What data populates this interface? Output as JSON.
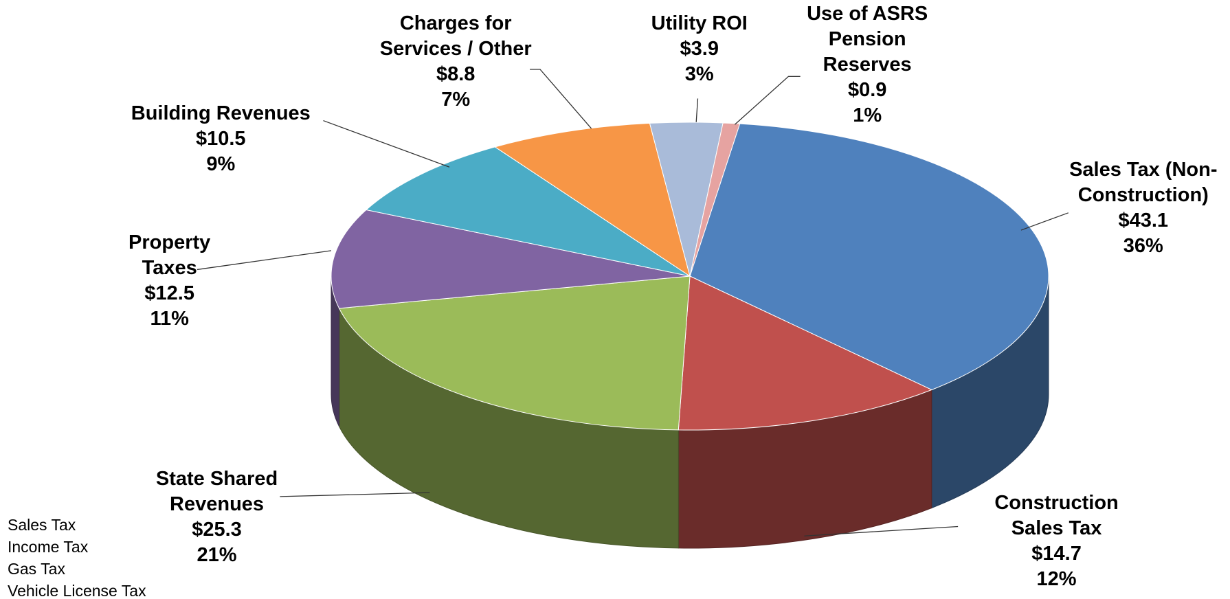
{
  "chart_data": {
    "type": "pie3d",
    "categories": [
      "Sales Tax (Non-\nConstruction)",
      "Construction\nSales Tax",
      "State Shared\nRevenues",
      "Property\nTaxes",
      "Building Revenues",
      "Charges for\nServices / Other",
      "Utility ROI",
      "Use of ASRS\nPension\nReserves"
    ],
    "values": [
      43.1,
      14.7,
      25.3,
      12.5,
      10.5,
      8.8,
      3.9,
      0.9
    ],
    "value_labels": [
      "$43.1",
      "$14.7",
      "$25.3",
      "$12.5",
      "$10.5",
      "$8.8",
      "$3.9",
      "$0.9"
    ],
    "shares": [
      36,
      12,
      21,
      11,
      9,
      7,
      3,
      1
    ],
    "share_labels": [
      "36%",
      "12%",
      "21%",
      "11%",
      "9%",
      "7%",
      "3%",
      "1%"
    ],
    "colors": [
      "#4f81bd",
      "#c0504d",
      "#9bbb59",
      "#8064a2",
      "#4bacc6",
      "#f79646",
      "#a9bbd9",
      "#e6a3a1"
    ],
    "note_lines": [
      "Sales Tax",
      "Income Tax",
      "Gas Tax",
      "Vehicle License Tax"
    ]
  }
}
